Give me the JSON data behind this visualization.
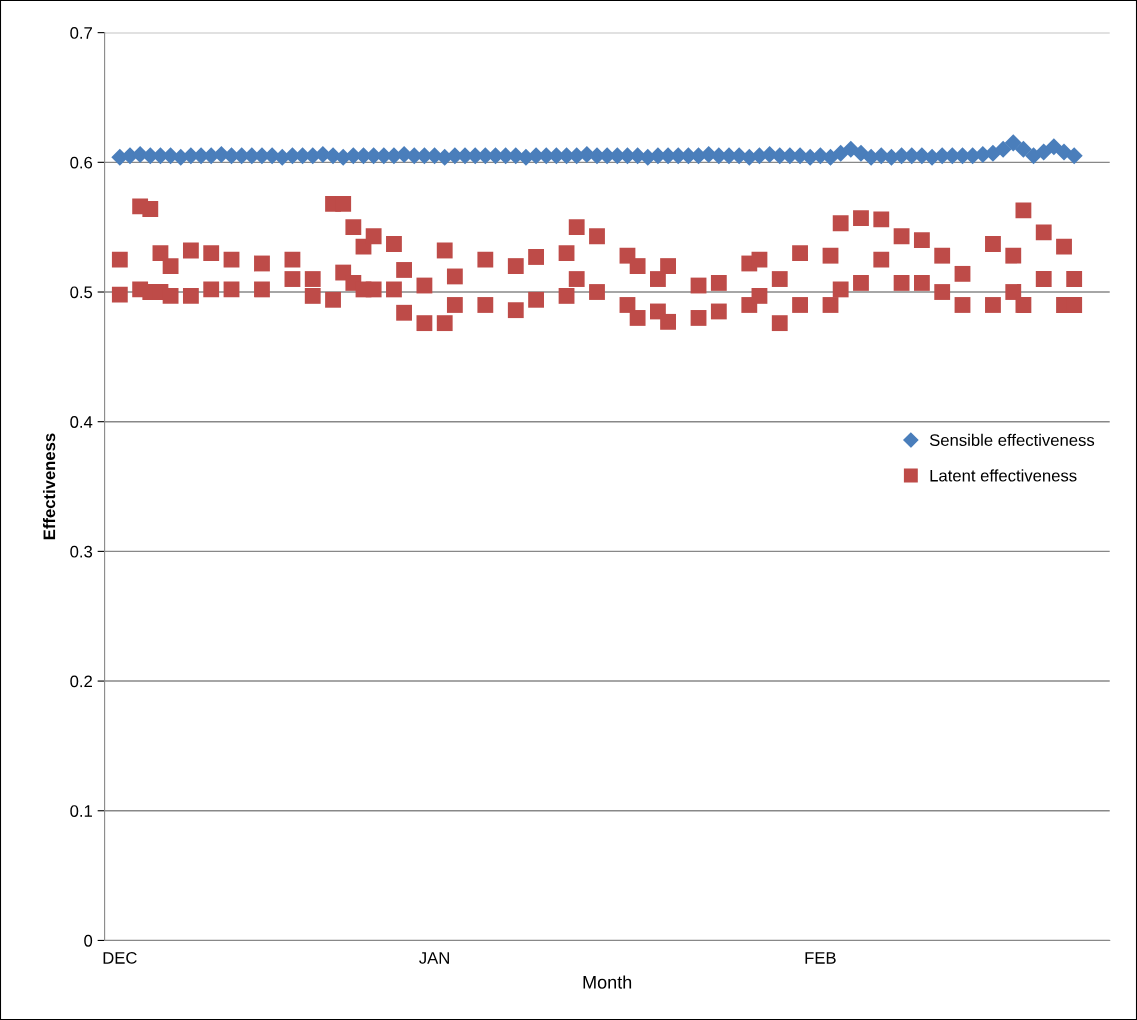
{
  "chart_data": {
    "type": "scatter",
    "xlabel": "Month",
    "ylabel": "Effectiveness",
    "categories": [
      "DEC",
      null,
      null,
      null,
      null,
      null,
      null,
      null,
      null,
      null,
      null,
      null,
      null,
      null,
      null,
      null,
      null,
      null,
      null,
      null,
      null,
      null,
      null,
      null,
      null,
      null,
      null,
      null,
      null,
      null,
      null,
      "JAN",
      null,
      null,
      null,
      null,
      null,
      null,
      null,
      null,
      null,
      null,
      null,
      null,
      null,
      null,
      null,
      null,
      null,
      null,
      null,
      null,
      null,
      null,
      null,
      null,
      null,
      null,
      null,
      null,
      null,
      null,
      null,
      null,
      null,
      null,
      null,
      null,
      null,
      "FEB",
      null,
      null,
      null,
      null,
      null,
      null,
      null,
      null,
      null,
      null,
      null,
      null,
      null,
      null,
      null,
      null,
      null,
      null,
      null,
      null,
      null,
      null,
      null,
      null,
      null
    ],
    "ylim": [
      0,
      0.7
    ],
    "yticks": [
      0,
      0.1,
      0.2,
      0.3,
      0.4,
      0.5,
      0.6,
      0.7
    ],
    "grid": "y",
    "legend": "center right",
    "series": [
      {
        "name": "Sensible effectiveness",
        "color": "#4a7ebb",
        "marker": "diamond",
        "values": [
          0.604,
          0.605,
          0.606,
          0.605,
          0.605,
          0.605,
          0.604,
          0.605,
          0.605,
          0.605,
          0.606,
          0.605,
          0.605,
          0.605,
          0.605,
          0.605,
          0.604,
          0.605,
          0.605,
          0.605,
          0.606,
          0.605,
          0.604,
          0.605,
          0.605,
          0.605,
          0.605,
          0.605,
          0.606,
          0.605,
          0.605,
          0.605,
          0.604,
          0.605,
          0.605,
          0.605,
          0.605,
          0.605,
          0.605,
          0.605,
          0.604,
          0.605,
          0.605,
          0.605,
          0.605,
          0.605,
          0.606,
          0.605,
          0.605,
          0.605,
          0.605,
          0.605,
          0.604,
          0.605,
          0.605,
          0.605,
          0.605,
          0.605,
          0.606,
          0.605,
          0.605,
          0.605,
          0.604,
          0.605,
          0.606,
          0.605,
          0.605,
          0.605,
          0.604,
          0.605,
          0.604,
          0.607,
          0.61,
          0.607,
          0.604,
          0.605,
          0.604,
          0.605,
          0.605,
          0.605,
          0.604,
          0.605,
          0.605,
          0.605,
          0.605,
          0.606,
          0.607,
          0.61,
          0.615,
          0.61,
          0.605,
          0.608,
          0.612,
          0.608,
          0.605
        ]
      },
      {
        "name": "Latent effectiveness",
        "color": "#be4b48",
        "marker": "square",
        "values": [
          0.525,
          null,
          0.566,
          0.564,
          0.53,
          0.52,
          null,
          0.532,
          null,
          0.53,
          null,
          0.525,
          null,
          null,
          0.522,
          null,
          null,
          0.525,
          null,
          0.51,
          null,
          0.568,
          0.568,
          0.55,
          0.535,
          0.543,
          null,
          0.537,
          0.517,
          null,
          0.505,
          null,
          0.532,
          0.512,
          null,
          null,
          0.525,
          null,
          null,
          0.52,
          null,
          0.527,
          null,
          null,
          0.53,
          0.55,
          null,
          0.543,
          null,
          null,
          0.528,
          0.52,
          null,
          0.51,
          0.52,
          null,
          null,
          0.505,
          null,
          0.507,
          null,
          null,
          0.522,
          0.525,
          null,
          0.51,
          null,
          0.53,
          null,
          null,
          0.528,
          0.553,
          null,
          0.557,
          null,
          0.556,
          null,
          0.543,
          null,
          0.54,
          null,
          0.528,
          null,
          0.514,
          null,
          null,
          0.537,
          null,
          0.528,
          0.563,
          null,
          0.546,
          null,
          0.535,
          0.51
        ]
      },
      {
        "color": "#be4b48",
        "marker": "square",
        "values": [
          0.498,
          null,
          0.502,
          0.5,
          0.5,
          0.497,
          null,
          0.497,
          null,
          0.502,
          null,
          0.502,
          null,
          null,
          0.502,
          null,
          null,
          0.51,
          null,
          0.497,
          null,
          0.494,
          0.515,
          0.507,
          0.502,
          0.502,
          null,
          0.502,
          0.484,
          null,
          0.476,
          null,
          0.476,
          0.49,
          null,
          null,
          0.49,
          null,
          null,
          0.486,
          null,
          0.494,
          null,
          null,
          0.497,
          0.51,
          null,
          0.5,
          null,
          null,
          0.49,
          0.48,
          null,
          0.485,
          0.477,
          null,
          null,
          0.48,
          null,
          0.485,
          null,
          null,
          0.49,
          0.497,
          null,
          0.476,
          null,
          0.49,
          null,
          null,
          0.49,
          0.502,
          null,
          0.507,
          null,
          0.525,
          null,
          0.507,
          null,
          0.507,
          null,
          0.5,
          null,
          0.49,
          null,
          null,
          0.49,
          null,
          0.5,
          0.49,
          null,
          0.51,
          null,
          0.49,
          0.49
        ]
      }
    ]
  }
}
